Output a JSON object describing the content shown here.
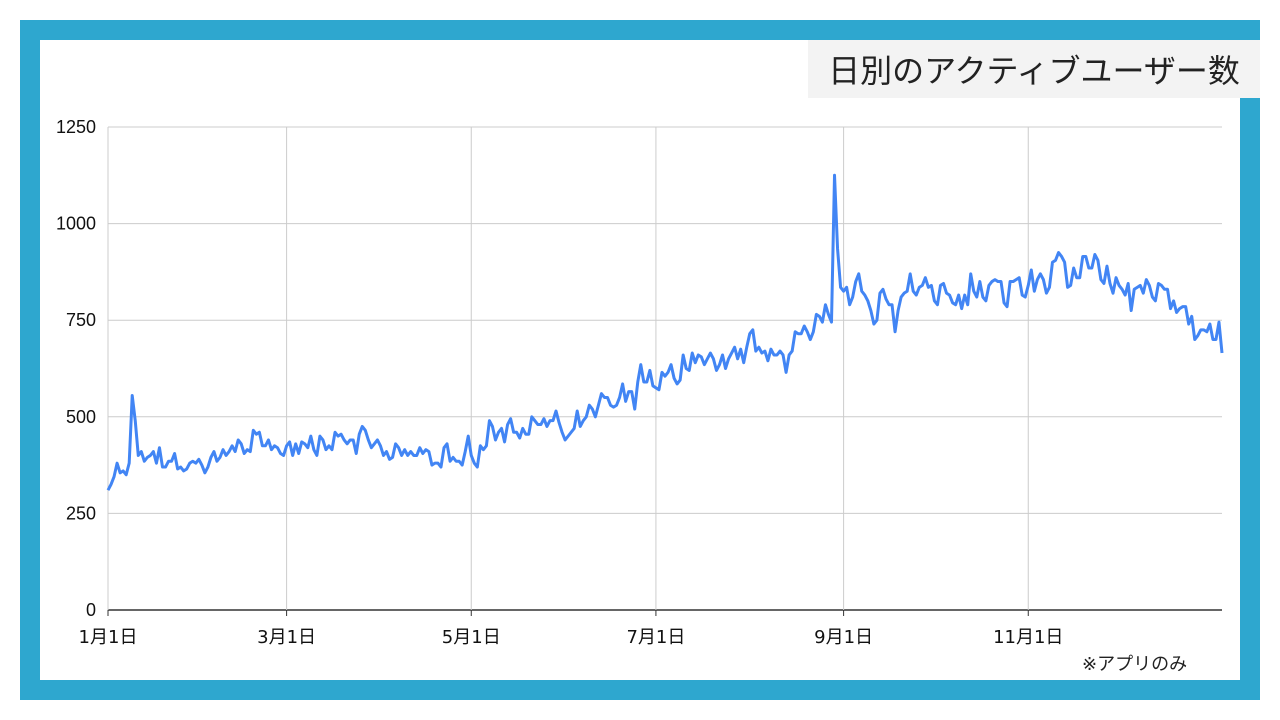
{
  "chart_data": {
    "type": "line",
    "title": "日別のアクティブユーザー数",
    "note": "※アプリのみ",
    "ylim": [
      0,
      1250
    ],
    "yticks": [
      0,
      250,
      500,
      750,
      1000,
      1250
    ],
    "xlim": [
      "1月1日",
      "12月31日"
    ],
    "xticks": [
      {
        "label": "1月1日",
        "day": 0
      },
      {
        "label": "3月1日",
        "day": 59
      },
      {
        "label": "5月1日",
        "day": 120
      },
      {
        "label": "7月1日",
        "day": 181
      },
      {
        "label": "9月1日",
        "day": 243
      },
      {
        "label": "11月1日",
        "day": 304
      }
    ],
    "grid": true,
    "legend": "none",
    "line_color": "#4285f4",
    "series": [
      {
        "values": [
          310,
          325,
          345,
          380,
          355,
          360,
          350,
          380,
          555,
          490,
          400,
          410,
          385,
          395,
          400,
          410,
          380,
          420,
          370,
          370,
          385,
          385,
          405,
          365,
          370,
          360,
          365,
          380,
          385,
          380,
          390,
          375,
          355,
          370,
          395,
          410,
          385,
          395,
          415,
          400,
          410,
          425,
          410,
          440,
          430,
          405,
          415,
          410,
          465,
          455,
          460,
          425,
          425,
          440,
          415,
          425,
          420,
          405,
          400,
          425,
          435,
          400,
          430,
          405,
          435,
          430,
          420,
          450,
          415,
          400,
          450,
          440,
          415,
          425,
          415,
          460,
          450,
          455,
          440,
          430,
          440,
          440,
          405,
          455,
          475,
          465,
          440,
          420,
          430,
          440,
          425,
          400,
          410,
          390,
          395,
          430,
          420,
          400,
          415,
          400,
          410,
          400,
          400,
          420,
          405,
          415,
          410,
          375,
          380,
          380,
          370,
          420,
          430,
          385,
          395,
          385,
          385,
          375,
          410,
          450,
          400,
          380,
          370,
          425,
          415,
          425,
          490,
          475,
          440,
          460,
          470,
          435,
          480,
          495,
          460,
          460,
          445,
          470,
          455,
          455,
          500,
          490,
          480,
          480,
          495,
          475,
          490,
          490,
          515,
          485,
          460,
          440,
          450,
          460,
          470,
          515,
          475,
          490,
          500,
          530,
          520,
          500,
          530,
          560,
          550,
          550,
          530,
          525,
          530,
          550,
          585,
          540,
          565,
          565,
          520,
          590,
          635,
          590,
          590,
          620,
          580,
          575,
          570,
          615,
          605,
          615,
          635,
          600,
          585,
          595,
          660,
          625,
          620,
          665,
          640,
          660,
          655,
          635,
          650,
          665,
          650,
          620,
          635,
          660,
          625,
          650,
          665,
          680,
          650,
          675,
          640,
          680,
          715,
          725,
          670,
          680,
          665,
          670,
          645,
          675,
          660,
          660,
          670,
          660,
          615,
          660,
          670,
          720,
          715,
          715,
          735,
          720,
          700,
          720,
          765,
          760,
          745,
          790,
          765,
          745,
          1125,
          935,
          835,
          825,
          835,
          790,
          810,
          850,
          870,
          825,
          815,
          800,
          775,
          740,
          750,
          820,
          830,
          805,
          790,
          790,
          720,
          775,
          810,
          820,
          825,
          870,
          825,
          815,
          835,
          840,
          860,
          835,
          840,
          800,
          790,
          840,
          845,
          820,
          815,
          795,
          790,
          815,
          780,
          815,
          790,
          870,
          825,
          810,
          850,
          810,
          800,
          840,
          850,
          855,
          850,
          850,
          795,
          785,
          850,
          850,
          855,
          860,
          815,
          810,
          840,
          880,
          825,
          855,
          870,
          855,
          820,
          835,
          900,
          905,
          925,
          915,
          900,
          835,
          840,
          885,
          860,
          860,
          915,
          915,
          885,
          885,
          920,
          905,
          855,
          845,
          890,
          845,
          820,
          860,
          840,
          830,
          815,
          845,
          775,
          830,
          835,
          840,
          820,
          855,
          840,
          810,
          800,
          845,
          840,
          830,
          830,
          780,
          800,
          770,
          780,
          785,
          785,
          740,
          760,
          700,
          710,
          725,
          725,
          720,
          740,
          700,
          700,
          745,
          665
        ]
      }
    ]
  }
}
